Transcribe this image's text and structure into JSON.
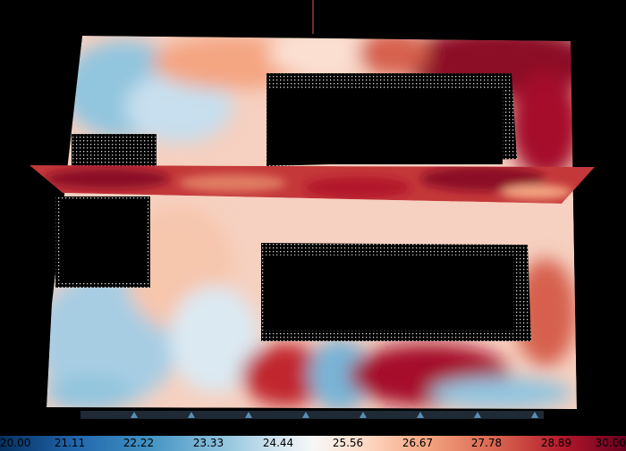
{
  "viewport": {
    "scene": "cfd-temperature-field",
    "background": "#000000",
    "colormap": "RdBu_r"
  },
  "colorbar": {
    "min": 20.0,
    "max": 30.0,
    "ticks": [
      "20.00",
      "21.11",
      "22.22",
      "23.33",
      "24.44",
      "25.56",
      "26.67",
      "27.78",
      "28.89",
      "30.00"
    ],
    "stops": [
      "#053061",
      "#2166ac",
      "#4393c3",
      "#92c5de",
      "#d1e5f0",
      "#f7f7f7",
      "#fddbc7",
      "#f4a582",
      "#d6604d",
      "#b2182b",
      "#67001f"
    ]
  }
}
